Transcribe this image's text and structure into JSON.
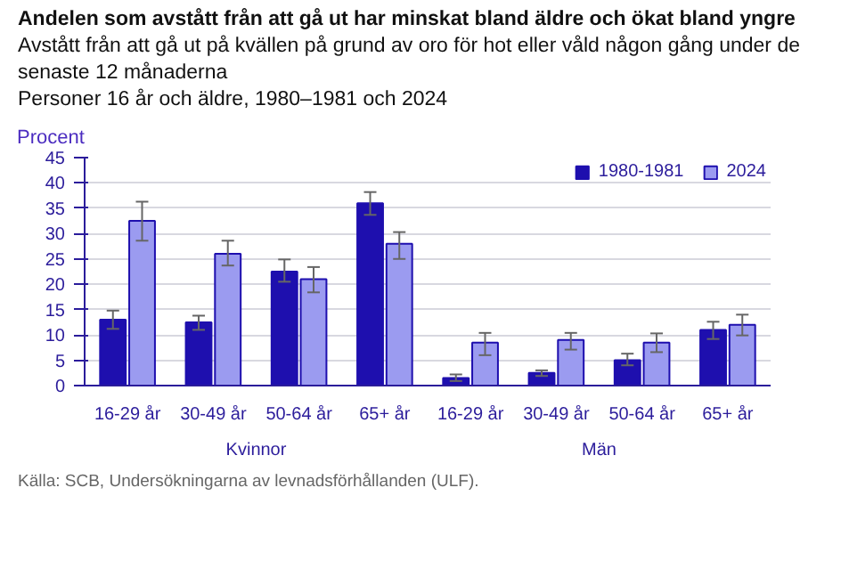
{
  "chart_data": {
    "type": "bar",
    "title": "Andelen som avstått från att gå ut har minskat bland äldre och ökat bland yngre",
    "subtitle": "Avstått från att gå ut på kvällen på grund av oro för hot eller våld någon gång under de senaste 12 månaderna",
    "ylabel": "Procent",
    "categories": [
      "16-29 år",
      "30-49 år",
      "50-64 år",
      "65+ år",
      "16-29 år",
      "30-49 år",
      "50-64 år",
      "65+ år"
    ],
    "series": [
      {
        "name": "1980-1981",
        "color": "#1e0fae",
        "values": [
          13,
          12.5,
          22.5,
          36,
          1.5,
          2.5,
          5,
          11
        ],
        "errors": [
          [
            11.2,
            14.8
          ],
          [
            11.0,
            13.8
          ],
          [
            20.5,
            24.9
          ],
          [
            33.7,
            38.2
          ],
          [
            0.9,
            2.2
          ],
          [
            1.9,
            3.0
          ],
          [
            4.0,
            6.3
          ],
          [
            9.2,
            12.6
          ]
        ]
      },
      {
        "name": "2024",
        "color": "#9b9bf0",
        "values": [
          32.5,
          26,
          21,
          28,
          8.5,
          9,
          8.5,
          12
        ],
        "errors": [
          [
            28.6,
            36.3
          ],
          [
            23.7,
            28.6
          ],
          [
            18.4,
            23.4
          ],
          [
            25.0,
            30.3
          ],
          [
            6.0,
            10.4
          ],
          [
            7.1,
            10.4
          ],
          [
            6.6,
            10.3
          ],
          [
            9.9,
            14.0
          ]
        ]
      }
    ],
    "ylim": [
      0,
      45
    ],
    "yticks": [
      0,
      5,
      10,
      15,
      20,
      25,
      30,
      35,
      40,
      45
    ],
    "grid": "y",
    "legend": "top right",
    "annotations": [
      "Personer 16 år och äldre, 1980–1981 och 2024",
      "Kvinnor",
      "Män",
      "Källa: SCB, Undersökningarna av levnadsförhållanden (ULF)."
    ]
  }
}
